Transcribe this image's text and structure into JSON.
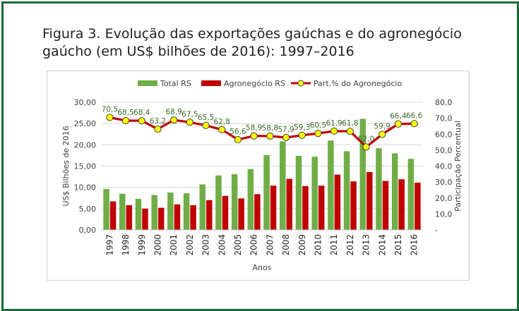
{
  "figure": {
    "title_line1": "Figura 3. Evolução das exportações gaúchas e do agronegócio",
    "title_line2": "gaúcho (em US$ bilhões de 2016): 1997–2016"
  },
  "colors": {
    "frame": "#1d6b3a",
    "total": "#70ad47",
    "agro": "#c00000",
    "line": "#c00000",
    "marker": "#ffff00",
    "label": "#3d6b2a"
  },
  "chart_data": {
    "type": "bar",
    "categories": [
      "1997",
      "1998",
      "1999",
      "2000",
      "2001",
      "2002",
      "2003",
      "2004",
      "2005",
      "2006",
      "2007",
      "2008",
      "2009",
      "2010",
      "2011",
      "2012",
      "2013",
      "2014",
      "2015",
      "2016"
    ],
    "series": [
      {
        "name": "Total RS",
        "type": "bar",
        "axis": "left",
        "values": [
          9.6,
          8.5,
          7.3,
          8.2,
          8.8,
          8.6,
          10.7,
          12.8,
          13.1,
          14.3,
          17.6,
          20.8,
          17.4,
          17.2,
          21.0,
          18.5,
          26.1,
          19.2,
          18.0,
          16.7
        ]
      },
      {
        "name": "Agronegócio RS",
        "type": "bar",
        "axis": "left",
        "values": [
          6.7,
          5.8,
          5.0,
          5.2,
          6.0,
          5.8,
          7.0,
          8.0,
          7.4,
          8.4,
          10.4,
          12.0,
          10.3,
          10.4,
          13.0,
          11.4,
          13.6,
          11.5,
          11.9,
          11.1
        ]
      },
      {
        "name": "Part.% do Agronegócio",
        "type": "line",
        "axis": "right",
        "values": [
          70.5,
          68.5,
          68.4,
          63.2,
          68.9,
          67.5,
          65.5,
          62.8,
          56.6,
          58.9,
          58.8,
          57.9,
          59.3,
          60.5,
          61.9,
          61.8,
          52.0,
          59.9,
          66.4,
          66.6
        ]
      }
    ],
    "point_labels": [
      "70,5",
      "68,5",
      "68,4",
      "63,2",
      "68,9",
      "67,5",
      "65,5",
      "62,8",
      "56,6",
      "58,9",
      "58,8",
      "57,9",
      "59,3",
      "60,5",
      "61,9",
      "61,8",
      "52,0",
      "59,9",
      "66,4",
      "66,6"
    ],
    "y_left": {
      "label": "US$ Bilhões de 2016",
      "min": 0,
      "max": 30,
      "ticks": [
        "0,00",
        "5,00",
        "10,00",
        "15,00",
        "20,00",
        "25,00",
        "30,00"
      ]
    },
    "y_right": {
      "label": "Participação Percentual",
      "min": 0,
      "max": 80,
      "ticks": [
        "-",
        "10,0",
        "20,0",
        "30,0",
        "40,0",
        "50,0",
        "60,0",
        "70,0",
        "80,0"
      ]
    },
    "xlabel": "Anos",
    "legend": [
      "Total RS",
      "Agronegócio RS",
      "Part.% do Agronegócio"
    ],
    "legend_position": "top",
    "grid": true
  }
}
